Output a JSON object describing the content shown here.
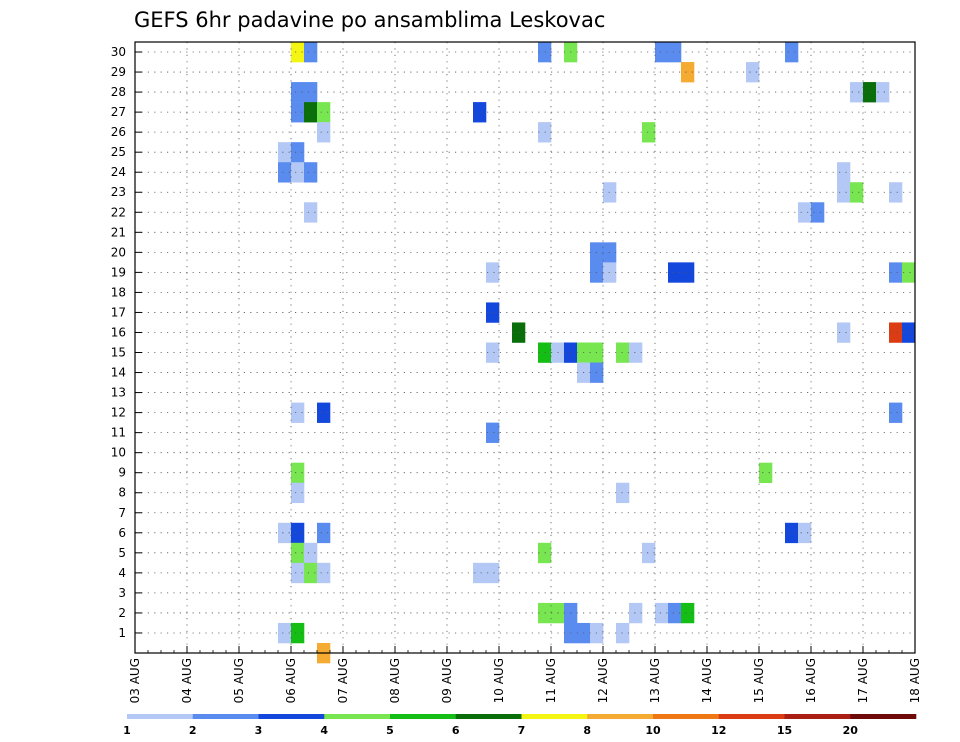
{
  "chart_data": {
    "type": "heatmap",
    "title": "GEFS 6hr padavine po ansamblima Leskovac",
    "xlabel": "",
    "ylabel": "",
    "x_tick_labels": [
      "03 AUG",
      "04 AUG",
      "05 AUG",
      "06 AUG",
      "07 AUG",
      "08 AUG",
      "09 AUG",
      "10 AUG",
      "11 AUG",
      "12 AUG",
      "13 AUG",
      "14 AUG",
      "15 AUG",
      "16 AUG",
      "17 AUG",
      "18 AUG"
    ],
    "y_tick_labels": [
      "1",
      "2",
      "3",
      "4",
      "5",
      "6",
      "7",
      "8",
      "9",
      "10",
      "11",
      "12",
      "13",
      "14",
      "15",
      "16",
      "17",
      "18",
      "19",
      "20",
      "21",
      "22",
      "23",
      "24",
      "25",
      "26",
      "27",
      "28",
      "29",
      "30"
    ],
    "steps_per_day": 4,
    "n_steps": 60,
    "n_members": 30,
    "grid": "dotted",
    "colorbar": {
      "position": "bottom",
      "thresholds": [
        "1",
        "2",
        "3",
        "4",
        "5",
        "6",
        "7",
        "8",
        "10",
        "12",
        "15",
        "20"
      ],
      "colors": [
        "#b4c8f5",
        "#5a8cf0",
        "#1448dc",
        "#78e650",
        "#14be14",
        "#0a6e0a",
        "#f5f514",
        "#f5aa32",
        "#f07814",
        "#dc3c14",
        "#aa1e14",
        "#6e0a0a"
      ]
    },
    "cells": [
      [
        30,
        12,
        6
      ],
      [
        30,
        13,
        1
      ],
      [
        30,
        31,
        1
      ],
      [
        30,
        33,
        3
      ],
      [
        30,
        40,
        1
      ],
      [
        30,
        41,
        1
      ],
      [
        30,
        50,
        1
      ],
      [
        29,
        42,
        7
      ],
      [
        29,
        47,
        0
      ],
      [
        28,
        12,
        1
      ],
      [
        28,
        13,
        1
      ],
      [
        28,
        55,
        0
      ],
      [
        28,
        56,
        5
      ],
      [
        28,
        57,
        0
      ],
      [
        27,
        12,
        1
      ],
      [
        27,
        13,
        5
      ],
      [
        27,
        14,
        3
      ],
      [
        27,
        26,
        2
      ],
      [
        26,
        14,
        0
      ],
      [
        26,
        31,
        0
      ],
      [
        26,
        39,
        3
      ],
      [
        25,
        11,
        0
      ],
      [
        25,
        12,
        1
      ],
      [
        24,
        11,
        1
      ],
      [
        24,
        12,
        0
      ],
      [
        24,
        13,
        1
      ],
      [
        24,
        54,
        0
      ],
      [
        23,
        36,
        0
      ],
      [
        23,
        54,
        0
      ],
      [
        23,
        55,
        3
      ],
      [
        23,
        58,
        0
      ],
      [
        22,
        13,
        0
      ],
      [
        22,
        51,
        0
      ],
      [
        22,
        52,
        1
      ],
      [
        20,
        35,
        1
      ],
      [
        20,
        36,
        1
      ],
      [
        19,
        27,
        0
      ],
      [
        19,
        35,
        1
      ],
      [
        19,
        36,
        0
      ],
      [
        19,
        41,
        2
      ],
      [
        19,
        42,
        2
      ],
      [
        19,
        58,
        1
      ],
      [
        19,
        59,
        3
      ],
      [
        17,
        27,
        2
      ],
      [
        16,
        29,
        5
      ],
      [
        16,
        54,
        0
      ],
      [
        16,
        58,
        9
      ],
      [
        16,
        59,
        2
      ],
      [
        15,
        27,
        0
      ],
      [
        15,
        31,
        4
      ],
      [
        15,
        32,
        0
      ],
      [
        15,
        33,
        2
      ],
      [
        15,
        34,
        3
      ],
      [
        15,
        35,
        3
      ],
      [
        15,
        37,
        3
      ],
      [
        15,
        38,
        0
      ],
      [
        14,
        34,
        0
      ],
      [
        14,
        35,
        1
      ],
      [
        12,
        12,
        0
      ],
      [
        12,
        14,
        2
      ],
      [
        12,
        58,
        1
      ],
      [
        11,
        27,
        1
      ],
      [
        9,
        12,
        3
      ],
      [
        9,
        48,
        3
      ],
      [
        8,
        12,
        0
      ],
      [
        8,
        37,
        0
      ],
      [
        6,
        11,
        0
      ],
      [
        6,
        12,
        2
      ],
      [
        6,
        14,
        1
      ],
      [
        6,
        50,
        2
      ],
      [
        6,
        51,
        0
      ],
      [
        5,
        12,
        3
      ],
      [
        5,
        13,
        0
      ],
      [
        5,
        31,
        3
      ],
      [
        5,
        39,
        0
      ],
      [
        4,
        12,
        0
      ],
      [
        4,
        13,
        3
      ],
      [
        4,
        14,
        0
      ],
      [
        4,
        26,
        0
      ],
      [
        4,
        27,
        0
      ],
      [
        2,
        31,
        3
      ],
      [
        2,
        32,
        3
      ],
      [
        2,
        33,
        1
      ],
      [
        2,
        38,
        0
      ],
      [
        2,
        40,
        0
      ],
      [
        2,
        41,
        1
      ],
      [
        2,
        42,
        4
      ],
      [
        1,
        11,
        0
      ],
      [
        1,
        12,
        4
      ],
      [
        1,
        33,
        1
      ],
      [
        1,
        34,
        1
      ],
      [
        1,
        35,
        0
      ],
      [
        1,
        37,
        0
      ],
      [
        0,
        14,
        7
      ]
    ]
  }
}
